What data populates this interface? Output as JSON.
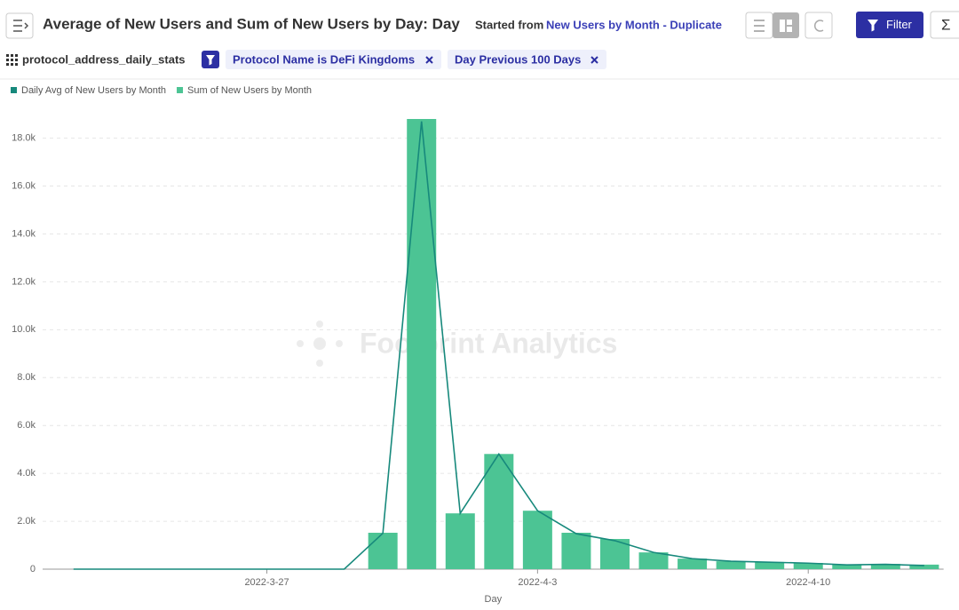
{
  "header": {
    "title": "Average of New Users and Sum of New Users by Day: Day",
    "started_from": "Started from",
    "source_link": "New Users by Month - Duplicate",
    "filter_button": "Filter",
    "sum_button": "Σ"
  },
  "filters": {
    "table_name": "protocol_address_daily_stats",
    "chips": [
      "Protocol Name is DeFi Kingdoms",
      "Day Previous 100 Days"
    ]
  },
  "watermark": "Footprint Analytics",
  "chart_data": {
    "type": "bar-line",
    "x_label": "Day",
    "categories": [
      null,
      null,
      null,
      null,
      null,
      "2022-3-27",
      null,
      null,
      null,
      null,
      null,
      null,
      "2022-4-3",
      null,
      null,
      null,
      null,
      null,
      null,
      "2022-4-10",
      null,
      null,
      null
    ],
    "series": [
      {
        "name": "Daily Avg of New Users by Month",
        "type": "line",
        "color": "#17897c",
        "values": [
          0,
          0,
          0,
          0,
          0,
          0,
          0,
          0,
          1500,
          18700,
          2330,
          4810,
          2440,
          1480,
          1190,
          700,
          440,
          330,
          290,
          250,
          180,
          200,
          150
        ]
      },
      {
        "name": "Sum of New Users by Month",
        "type": "bar",
        "color": "#4cc494",
        "values": [
          0,
          0,
          0,
          0,
          0,
          0,
          0,
          0,
          1520,
          18800,
          2330,
          4810,
          2440,
          1520,
          1260,
          700,
          440,
          330,
          300,
          260,
          190,
          220,
          190
        ]
      }
    ],
    "ylim": [
      0,
      18800
    ],
    "yticks": [
      0,
      {
        "value": 2000,
        "label": "2.0k"
      },
      {
        "value": 4000,
        "label": "4.0k"
      },
      {
        "value": 6000,
        "label": "6.0k"
      },
      {
        "value": 8000,
        "label": "8.0k"
      },
      {
        "value": 10000,
        "label": "10.0k"
      },
      {
        "value": 12000,
        "label": "12.0k"
      },
      {
        "value": 14000,
        "label": "14.0k"
      },
      {
        "value": 16000,
        "label": "16.0k"
      },
      {
        "value": 18000,
        "label": "18.0k"
      }
    ],
    "grid": true
  }
}
